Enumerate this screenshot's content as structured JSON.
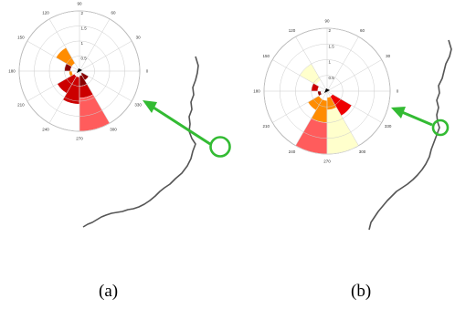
{
  "panels": [
    {
      "id": "a",
      "caption": "(a)",
      "angle_labels": [
        "0",
        "30",
        "60",
        "90",
        "120",
        "150",
        "180",
        "210",
        "240",
        "270",
        "300",
        "330"
      ],
      "radial_labels": [
        "0.5",
        "1",
        "1.5",
        "2"
      ],
      "radial_max": 2,
      "sectors": [
        {
          "angle_start": 120,
          "angle_end": 150,
          "r_inner": 0.3,
          "r_outer": 0.9,
          "color": "#ff8c00"
        },
        {
          "angle_start": 150,
          "angle_end": 180,
          "r_inner": 0.3,
          "r_outer": 0.5,
          "color": "#8b0000"
        },
        {
          "angle_start": 180,
          "angle_end": 210,
          "r_inner": 0.25,
          "r_outer": 0.35,
          "color": "#ff8c00"
        },
        {
          "angle_start": 210,
          "angle_end": 240,
          "r_inner": 0.2,
          "r_outer": 0.85,
          "color": "#cc0000"
        },
        {
          "angle_start": 240,
          "angle_end": 270,
          "r_inner": 0.2,
          "r_outer": 1.1,
          "color": "#cc0000"
        },
        {
          "angle_start": 270,
          "angle_end": 300,
          "r_inner": 0.15,
          "r_outer": 0.5,
          "color": "#8b0000"
        },
        {
          "angle_start": 270,
          "angle_end": 300,
          "r_inner": 0.5,
          "r_outer": 0.9,
          "color": "#cc0000"
        },
        {
          "angle_start": 270,
          "angle_end": 300,
          "r_inner": 0.9,
          "r_outer": 2.0,
          "color": "#ff5c5c"
        },
        {
          "angle_start": 300,
          "angle_end": 330,
          "r_inner": 0.1,
          "r_outer": 0.35,
          "color": "#8b0000"
        }
      ]
    },
    {
      "id": "b",
      "caption": "(b)",
      "angle_labels": [
        "0",
        "30",
        "60",
        "90",
        "120",
        "150",
        "180",
        "210",
        "240",
        "270",
        "300",
        "330"
      ],
      "radial_labels": [
        "0.5",
        "1",
        "1.5",
        "2"
      ],
      "radial_max": 2,
      "sectors": [
        {
          "angle_start": 120,
          "angle_end": 150,
          "r_inner": 0.4,
          "r_outer": 1.0,
          "color": "#ffffcc"
        },
        {
          "angle_start": 150,
          "angle_end": 180,
          "r_inner": 0.3,
          "r_outer": 0.5,
          "color": "#cc0000"
        },
        {
          "angle_start": 180,
          "angle_end": 210,
          "r_inner": 0.2,
          "r_outer": 0.3,
          "color": "#8b0000"
        },
        {
          "angle_start": 210,
          "angle_end": 240,
          "r_inner": 0.3,
          "r_outer": 0.7,
          "color": "#ff8c00"
        },
        {
          "angle_start": 240,
          "angle_end": 270,
          "r_inner": 0.3,
          "r_outer": 1.0,
          "color": "#ff8c00"
        },
        {
          "angle_start": 240,
          "angle_end": 270,
          "r_inner": 1.0,
          "r_outer": 2.0,
          "color": "#ff5c5c"
        },
        {
          "angle_start": 270,
          "angle_end": 300,
          "r_inner": 0.2,
          "r_outer": 0.6,
          "color": "#ff8c00"
        },
        {
          "angle_start": 270,
          "angle_end": 300,
          "r_inner": 0.6,
          "r_outer": 2.0,
          "color": "#ffffcc"
        },
        {
          "angle_start": 300,
          "angle_end": 330,
          "r_inner": 0.2,
          "r_outer": 0.9,
          "color": "#ee0000"
        }
      ]
    }
  ],
  "colors": {
    "arrow": "#33bb33",
    "river": "#555555",
    "grid": "#cccccc"
  }
}
